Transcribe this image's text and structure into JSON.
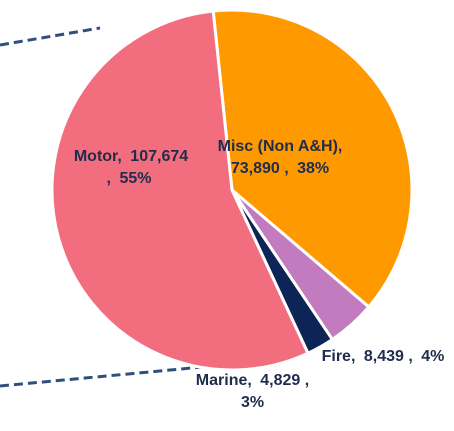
{
  "chart_data": {
    "type": "pie",
    "categories": [
      "Misc (Non A&H),",
      "Fire,",
      "Marine,",
      "Motor,"
    ],
    "values": [
      73890,
      8439,
      4829,
      107674
    ],
    "value_labels": [
      "73,890 ,",
      "8,439 ,",
      "4,829 ,",
      "107,674 ,"
    ],
    "percents": [
      {
        "value": 38,
        "label": "38%"
      },
      {
        "value": 4,
        "label": "4%"
      },
      {
        "value": 3,
        "label": "3%"
      },
      {
        "value": 55,
        "label": "55%"
      }
    ],
    "colors": [
      "#ff9900",
      "#c27bbf",
      "#0d2456",
      "#f26d7d"
    ]
  }
}
